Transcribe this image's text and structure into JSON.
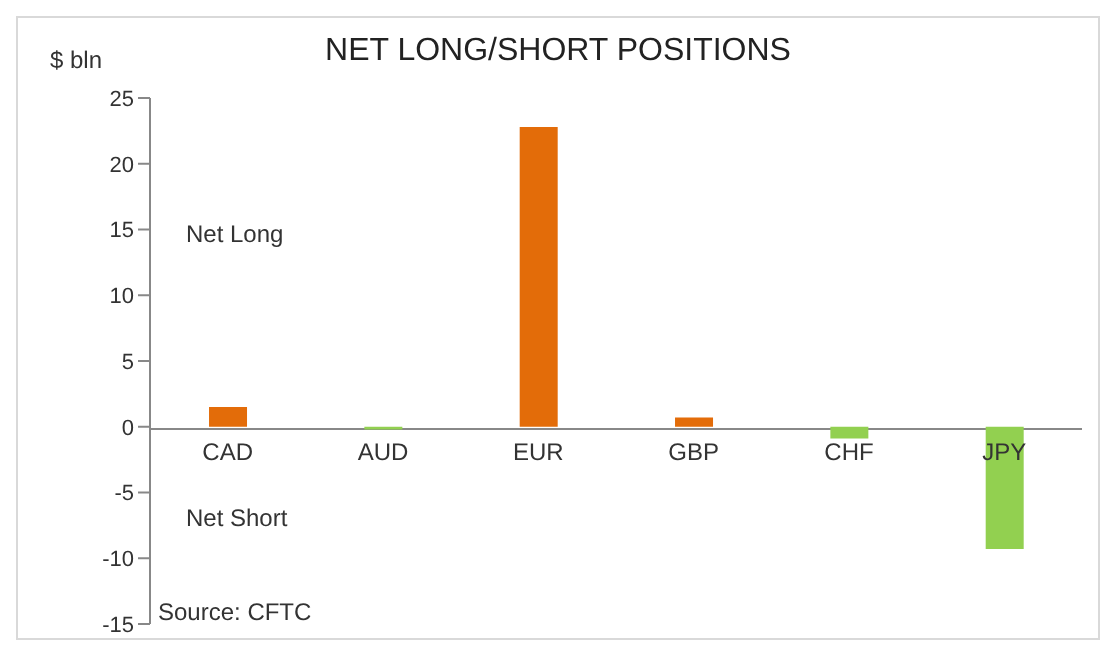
{
  "chart_data": {
    "type": "bar",
    "title": "NET LONG/SHORT POSITIONS",
    "ylabel": "$ bln",
    "categories": [
      "CAD",
      "AUD",
      "EUR",
      "GBP",
      "CHF",
      "JPY"
    ],
    "values": [
      1.5,
      -0.2,
      22.8,
      0.7,
      -0.9,
      -9.3
    ],
    "colors": [
      "#e36c09",
      "#92d050",
      "#e36c09",
      "#e36c09",
      "#92d050",
      "#92d050"
    ],
    "ylim": [
      -15,
      25
    ],
    "yticks": [
      -15,
      -10,
      -5,
      0,
      5,
      10,
      15,
      20,
      25
    ],
    "annotations": [
      "Net Long",
      "Net Short",
      "Source: CFTC"
    ]
  }
}
